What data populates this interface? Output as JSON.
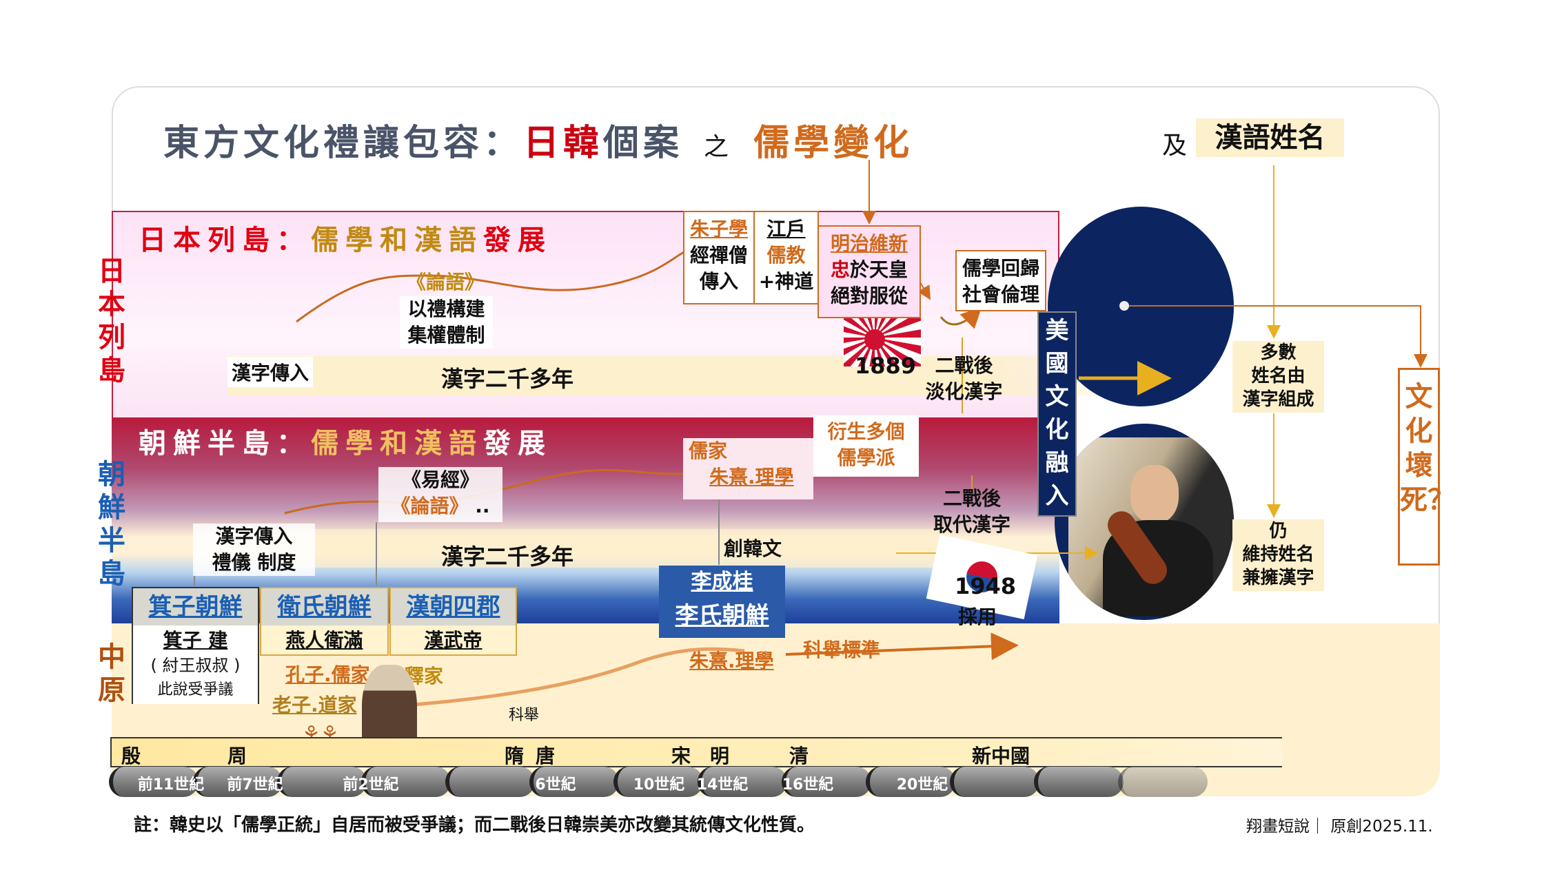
{
  "title": {
    "part1": "東方文化禮讓包容：",
    "part2": "日韓",
    "part3": "個案",
    "conj": "之",
    "part4": "儒學變化",
    "and": "及",
    "names": "漢語姓名"
  },
  "labels": {
    "japan": "日本列島",
    "korea": "朝鮮半島",
    "china": "中原"
  },
  "japan": {
    "header_a": "日本列島：",
    "header_b": "儒學和漢語",
    "header_c": "發展",
    "lunyu": "《論語》",
    "system1": "以禮構建",
    "system2": "集權體制",
    "kanji_in": "漢字傳入",
    "kanji_years": "漢字二千多年",
    "zhuzi": "朱子學",
    "zen1": "經禪僧",
    "zen2": "傳入",
    "edo": "江戶",
    "rujiao": "儒教",
    "shinto": "+神道",
    "meiji": "明治維新",
    "loyal_a": "忠",
    "loyal_b": "於天皇",
    "obey": "絕對服從",
    "return1": "儒學回歸",
    "return2": "社會倫理",
    "year": "1889",
    "postwar1": "二戰後",
    "postwar2": "淡化漢字"
  },
  "us": {
    "label": "美國文化融入"
  },
  "korea": {
    "header_a": "朝鮮半島：",
    "header_b": "儒學和漢語",
    "header_c": "發展",
    "yijing": "《易經》",
    "lunyu": "《論語》",
    "dots": "..",
    "kanji_in": "漢字傳入",
    "rites": "禮儀 制度",
    "kanji_years": "漢字二千多年",
    "rujia": "儒家",
    "zhuxi": "朱熹.理學",
    "schools1": "衍生多個",
    "schools2": "儒學派",
    "hangul": "創韓文",
    "yi1": "李成桂",
    "yi2": "李氏朝鮮",
    "postwar1": "二戰後",
    "postwar2": "取代漢字",
    "year": "1948",
    "adopt": "採用"
  },
  "kingdoms": [
    {
      "name": "箕子朝鮮",
      "l1": "箕子 建",
      "l2": "( 紂王叔叔 )",
      "l3": "此說受爭議"
    },
    {
      "name": "衛氏朝鮮",
      "l1": "燕人衛滿"
    },
    {
      "name": "漢朝四郡",
      "l1": "漢武帝"
    }
  ],
  "china": {
    "kongzi": "孔子.儒家",
    "laozi": "老子.道家",
    "shijia": "釋家",
    "zhuxi": "朱熹.理學",
    "keju_std": "科舉標準",
    "keju": "科舉"
  },
  "names": {
    "jp1": "多數",
    "jp2": "姓名由",
    "jp3": "漢字組成",
    "kr1": "仍",
    "kr2": "維持姓名",
    "kr3": "兼擁漢字"
  },
  "conclusion": "文化壞死？",
  "dynasties": [
    "殷",
    "周",
    "隋",
    "唐",
    "宋",
    "明",
    "清",
    "新中國"
  ],
  "centuries": [
    "前11世紀",
    "前7世紀",
    "前2世紀",
    "6世紀",
    "10世紀",
    "14世紀",
    "16世紀",
    "20世紀"
  ],
  "footnote": "註：韓史以「儒學正統」自居而被受爭議；而二戰後日韓崇美亦改變其統傳文化性質。",
  "credit": "翔畫短說｜ 原創2025.11.",
  "colors": {
    "red": "#cc0010",
    "orange": "#d06a1c",
    "navy": "#0c2560",
    "blue": "#1a5fb4",
    "gold": "#b8860b",
    "cream": "#fdf0cc"
  }
}
